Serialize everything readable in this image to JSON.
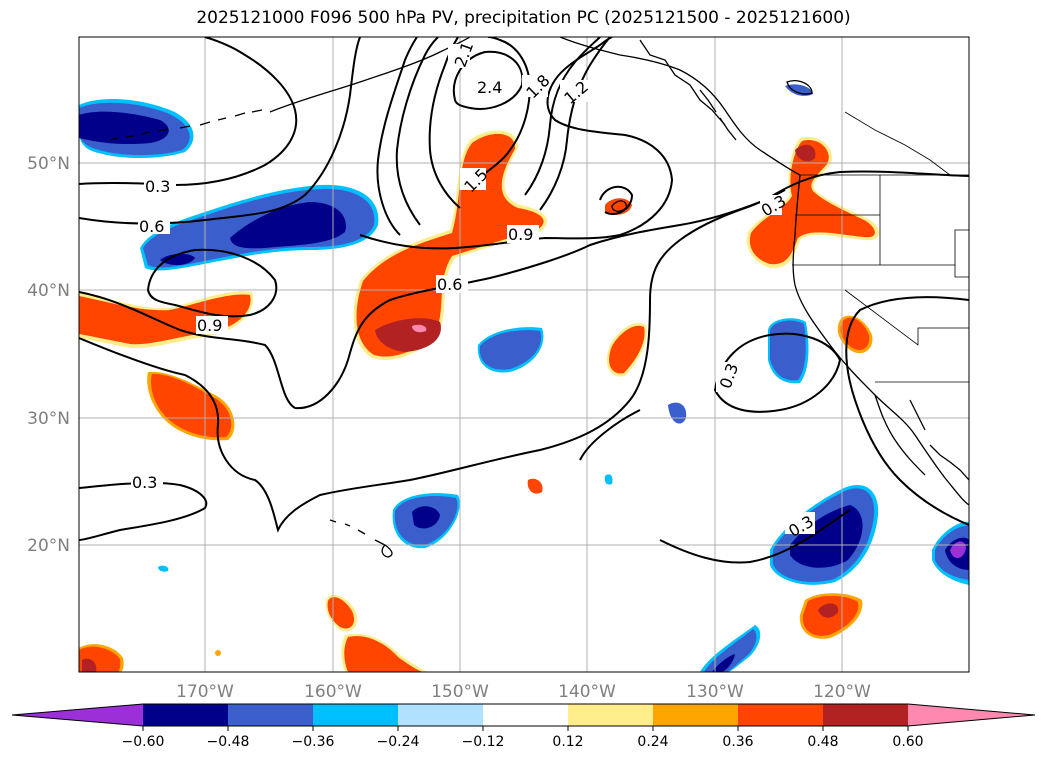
{
  "title": "2025121000 F096 500 hPa PV, precipitation PC (2025121500 - 2025121600)",
  "lon_labels": [
    "170°W",
    "160°W",
    "150°W",
    "140°W",
    "130°W",
    "120°W"
  ],
  "lat_labels": [
    "50°N",
    "40°N",
    "30°N",
    "20°N"
  ],
  "contour_labels": [
    "2.4",
    "2.1",
    "1.8",
    "1.5",
    "1.2",
    "0.9",
    "0.9",
    "0.6",
    "0.6",
    "0.3",
    "0.3",
    "0.3",
    "0.3",
    "0.3"
  ],
  "colorbar": {
    "ticks": [
      "−0.60",
      "−0.48",
      "−0.36",
      "−0.24",
      "−0.12",
      "0.12",
      "0.24",
      "0.36",
      "0.48",
      "0.60"
    ],
    "colors": [
      "#9b30d9",
      "#00008b",
      "#3a5fcd",
      "#00bfff",
      "#b0e2ff",
      "#ffffff",
      "#ffec8b",
      "#ffa500",
      "#ff4500",
      "#b22222",
      "#ff88b0"
    ]
  },
  "colors": {
    "land": "#ffffff",
    "coast": "#000000",
    "grid": "#b0b0b0",
    "contour": "#000000"
  }
}
